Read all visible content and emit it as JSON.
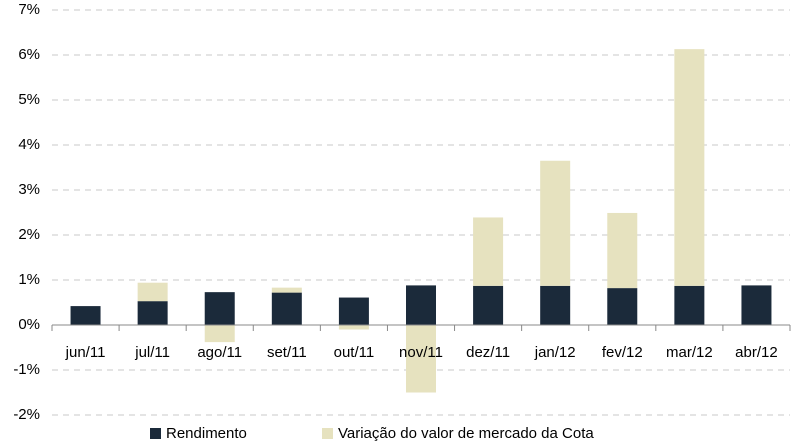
{
  "chart_data": {
    "type": "stacked_bar",
    "categories": [
      "jun/11",
      "jul/11",
      "ago/11",
      "set/11",
      "out/11",
      "nov/11",
      "dez/11",
      "jan/12",
      "fev/12",
      "mar/12",
      "abr/12"
    ],
    "series": [
      {
        "name": "Rendimento",
        "color": "#1b2a3a",
        "values": [
          0.42,
          0.53,
          0.73,
          0.72,
          0.61,
          0.88,
          0.87,
          0.87,
          0.82,
          0.87,
          0.88
        ]
      },
      {
        "name": "Variação do valor de mercado da Cota",
        "color": "#e6e2bf",
        "values": [
          0,
          0.41,
          -0.38,
          0.11,
          -0.1,
          -1.5,
          1.52,
          2.78,
          1.67,
          5.26,
          0
        ]
      }
    ],
    "ylim": [
      -2,
      7
    ],
    "yticks": [
      {
        "value": -2,
        "label": "-2%"
      },
      {
        "value": -1,
        "label": "-1%"
      },
      {
        "value": 0,
        "label": "0%"
      },
      {
        "value": 1,
        "label": "1%"
      },
      {
        "value": 2,
        "label": "2%"
      },
      {
        "value": 3,
        "label": "3%"
      },
      {
        "value": 4,
        "label": "4%"
      },
      {
        "value": 5,
        "label": "5%"
      },
      {
        "value": 6,
        "label": "6%"
      },
      {
        "value": 7,
        "label": "7%"
      }
    ],
    "grid": true
  }
}
